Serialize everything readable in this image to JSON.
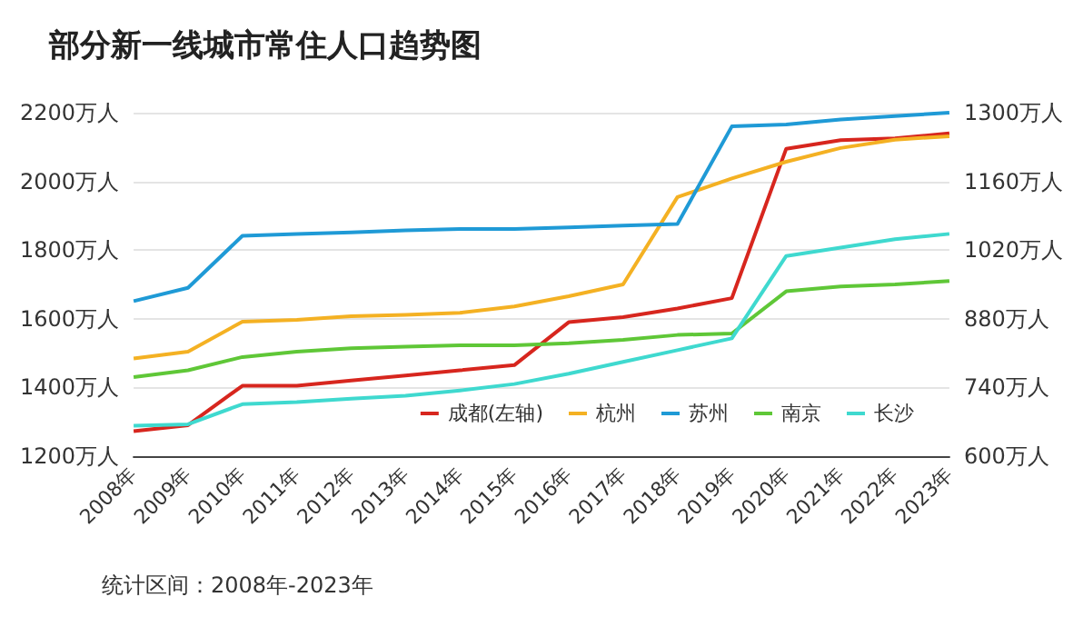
{
  "chart_data": {
    "type": "line",
    "title": "部分新一线城市常住人口趋势图",
    "categories": [
      "2008年",
      "2009年",
      "2010年",
      "2011年",
      "2012年",
      "2013年",
      "2014年",
      "2015年",
      "2016年",
      "2017年",
      "2018年",
      "2019年",
      "2020年",
      "2021年",
      "2022年",
      "2023年"
    ],
    "series": [
      {
        "name": "成都(左轴)",
        "color": "#d7261e",
        "values": [
          1273,
          1290,
          1405,
          1405,
          1420,
          1435,
          1450,
          1465,
          1590,
          1605,
          1630,
          1660,
          2095,
          2120,
          2125,
          2140
        ]
      },
      {
        "name": "杭州",
        "color": "#f4b123",
        "axis": "y2",
        "values": [
          799,
          813,
          874,
          878,
          885,
          888,
          892,
          905,
          926,
          950,
          1128,
          1166,
          1200,
          1228,
          1245,
          1252
        ]
      },
      {
        "name": "苏州",
        "color": "#1f9ad6",
        "axis": "y2",
        "values": [
          916,
          943,
          1049,
          1053,
          1056,
          1060,
          1063,
          1063,
          1066,
          1070,
          1073,
          1272,
          1276,
          1286,
          1293,
          1300
        ]
      },
      {
        "name": "南京",
        "color": "#5fc737",
        "axis": "y2",
        "values": [
          761,
          775,
          802,
          813,
          820,
          823,
          826,
          826,
          830,
          837,
          847,
          850,
          936,
          946,
          950,
          957
        ]
      },
      {
        "name": "长沙",
        "color": "#3fd9cf",
        "axis": "y2",
        "values": [
          662,
          665,
          706,
          710,
          717,
          723,
          734,
          747,
          768,
          792,
          816,
          840,
          1008,
          1025,
          1042,
          1053
        ]
      }
    ],
    "ylim": [
      1200,
      2200
    ],
    "yticks": [
      {
        "value": 1200,
        "label": "1200万人"
      },
      {
        "value": 1400,
        "label": "1400万人"
      },
      {
        "value": 1600,
        "label": "1600万人"
      },
      {
        "value": 1800,
        "label": "1800万人"
      },
      {
        "value": 2000,
        "label": "2000万人"
      },
      {
        "value": 2200,
        "label": "2200万人"
      }
    ],
    "y2lim": [
      600,
      1300
    ],
    "y2ticks": [
      {
        "value": 600,
        "label": "600万人"
      },
      {
        "value": 740,
        "label": "740万人"
      },
      {
        "value": 880,
        "label": "880万人"
      },
      {
        "value": 1020,
        "label": "1020万人"
      },
      {
        "value": 1160,
        "label": "1160万人"
      },
      {
        "value": 1300,
        "label": "1300万人"
      }
    ],
    "grid": "y",
    "legend": "bottom right",
    "marker": "none",
    "line_style": "solid",
    "annotations": [
      "统计区间：2008年-2023年"
    ]
  }
}
